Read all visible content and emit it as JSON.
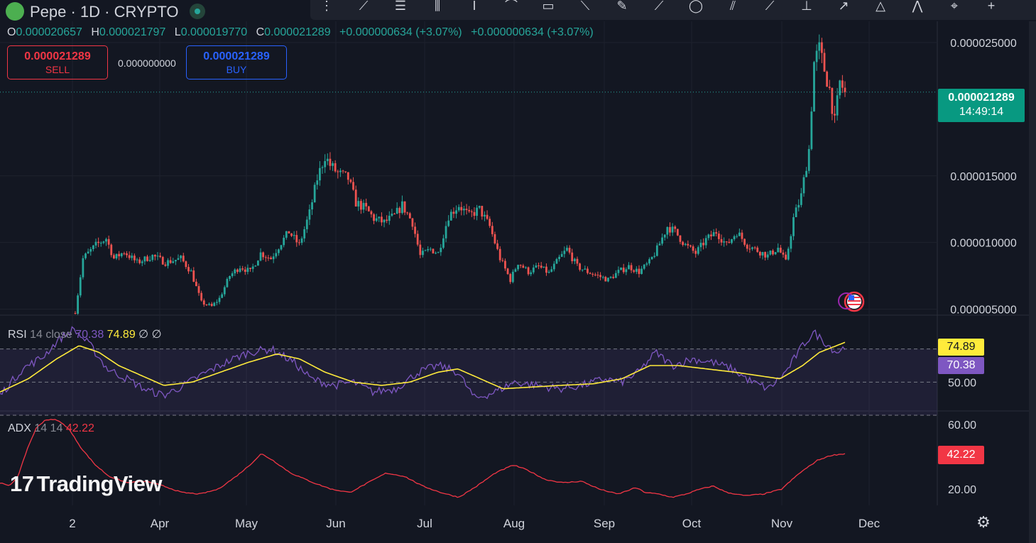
{
  "symbol": {
    "name": "Pepe · 1D · CRYPTO"
  },
  "ohlc": {
    "o_label": "O",
    "o": "0.000020657",
    "h_label": "H",
    "h": "0.000021797",
    "l_label": "L",
    "l": "0.000019770",
    "c_label": "C",
    "c": "0.000021289",
    "change": "+0.000000634 (+3.07%)",
    "change2": "+0.000000634 (+3.07%)"
  },
  "trade": {
    "sell_price": "0.000021289",
    "sell_label": "SELL",
    "spread": "0.000000000",
    "buy_price": "0.000021289",
    "buy_label": "BUY"
  },
  "price_tag": {
    "price": "0.000021289",
    "countdown": "14:49:14"
  },
  "rsi": {
    "name": "RSI",
    "params": "14 close",
    "value": "70.38",
    "ma_value": "74.89",
    "extra1": "∅",
    "extra2": "∅"
  },
  "adx": {
    "name": "ADX",
    "params": "14 14",
    "value": "42.22"
  },
  "watermark": "TradingView",
  "colors": {
    "up": "#26a69a",
    "down": "#ef5350",
    "rsi": "#7e57c2",
    "rsi_ma": "#ffeb3b",
    "adx": "#f23645",
    "bg": "#131722"
  },
  "icons": {
    "toolbar": [
      "drag-handle-icon",
      "trend-line-icon",
      "horizontal-lines-icon",
      "candles-icon",
      "text-cursor-icon",
      "node-line-icon",
      "rectangle-icon",
      "ray-icon",
      "pen-icon",
      "path-icon",
      "circle-icon",
      "parallel-icon",
      "line-node-icon",
      "anchor-icon",
      "arrow-icon",
      "triangle-icon",
      "pattern-icon",
      "crosshair-icon",
      "plus-icon"
    ]
  },
  "chart_data": {
    "type": "candlestick",
    "x_tick_labels": [
      "2",
      "Apr",
      "May",
      "Jun",
      "Jul",
      "Aug",
      "Sep",
      "Oct",
      "Nov",
      "Dec"
    ],
    "y_tick_labels": [
      "0.000025000",
      "0.000015000",
      "0.000010000",
      "0.000005000"
    ],
    "y_ticks": [
      2.5e-05,
      1.5e-05,
      1e-05,
      5e-06
    ],
    "ylim": [
      4.6e-06,
      2.66e-05
    ],
    "last_price": 2.1289e-05,
    "anchors": [
      [
        0,
        4.8e-06
      ],
      [
        3,
        8.8e-06
      ],
      [
        8,
        9.8e-06
      ],
      [
        12,
        1.03e-05
      ],
      [
        15,
        8.8e-06
      ],
      [
        19,
        9.3e-06
      ],
      [
        24,
        8.5e-06
      ],
      [
        30,
        9e-06
      ],
      [
        35,
        8.5e-06
      ],
      [
        41,
        8.8e-06
      ],
      [
        45,
        7.8e-06
      ],
      [
        49,
        5.5e-06
      ],
      [
        53,
        5.2e-06
      ],
      [
        56,
        5.8e-06
      ],
      [
        60,
        7.5e-06
      ],
      [
        64,
        8.2e-06
      ],
      [
        68,
        7.8e-06
      ],
      [
        72,
        9.2e-06
      ],
      [
        76,
        8.8e-06
      ],
      [
        80,
        1e-05
      ],
      [
        83,
        1.08e-05
      ],
      [
        87,
        9.8e-06
      ],
      [
        91,
        1.22e-05
      ],
      [
        94,
        1.48e-05
      ],
      [
        97,
        1.65e-05
      ],
      [
        99,
        1.58e-05
      ],
      [
        102,
        1.52e-05
      ],
      [
        106,
        1.48e-05
      ],
      [
        109,
        1.3e-05
      ],
      [
        113,
        1.25e-05
      ],
      [
        116,
        1.18e-05
      ],
      [
        120,
        1.15e-05
      ],
      [
        124,
        1.2e-05
      ],
      [
        127,
        1.28e-05
      ],
      [
        131,
        1.15e-05
      ],
      [
        134,
        9e-06
      ],
      [
        138,
        9.5e-06
      ],
      [
        141,
        9.2e-06
      ],
      [
        145,
        1.2e-05
      ],
      [
        149,
        1.28e-05
      ],
      [
        153,
        1.2e-05
      ],
      [
        157,
        1.25e-05
      ],
      [
        161,
        1.12e-05
      ],
      [
        165,
        8.8e-06
      ],
      [
        169,
        7.2e-06
      ],
      [
        172,
        8.5e-06
      ],
      [
        176,
        7.8e-06
      ],
      [
        180,
        8.2e-06
      ],
      [
        184,
        7.7e-06
      ],
      [
        188,
        8.8e-06
      ],
      [
        191,
        9.5e-06
      ],
      [
        195,
        8.2e-06
      ],
      [
        199,
        7.8e-06
      ],
      [
        203,
        7.5e-06
      ],
      [
        207,
        7.2e-06
      ],
      [
        211,
        7.8e-06
      ],
      [
        215,
        8.2e-06
      ],
      [
        219,
        7.8e-06
      ],
      [
        223,
        8.5e-06
      ],
      [
        226,
        9.5e-06
      ],
      [
        230,
        1.12e-05
      ],
      [
        233,
        1.08e-05
      ],
      [
        237,
        9.8e-06
      ],
      [
        241,
        9.2e-06
      ],
      [
        245,
        1.02e-05
      ],
      [
        249,
        1.08e-05
      ],
      [
        253,
        9.8e-06
      ],
      [
        257,
        1.08e-05
      ],
      [
        261,
        9.8e-06
      ],
      [
        265,
        9.4e-06
      ],
      [
        269,
        9e-06
      ],
      [
        273,
        9.6e-06
      ],
      [
        276,
        8.5e-06
      ],
      [
        279,
        1.18e-05
      ],
      [
        282,
        1.35e-05
      ],
      [
        285,
        1.7e-05
      ],
      [
        287,
        2.35e-05
      ],
      [
        289,
        2.45e-05
      ],
      [
        291,
        2.3e-05
      ],
      [
        293,
        2.15e-05
      ],
      [
        295,
        1.9e-05
      ],
      [
        297,
        2.2e-05
      ],
      [
        299,
        2.13e-05
      ]
    ],
    "rsi": {
      "ylim": [
        33,
        90
      ],
      "levels": [
        70,
        50,
        30
      ],
      "y_tick_labels": [
        "50.00"
      ],
      "last": 70.38,
      "ma_last": 74.89,
      "anchors": [
        [
          0,
          42
        ],
        [
          8,
          58
        ],
        [
          15,
          65
        ],
        [
          21,
          76
        ],
        [
          26,
          82
        ],
        [
          32,
          72
        ],
        [
          38,
          58
        ],
        [
          45,
          52
        ],
        [
          52,
          45
        ],
        [
          58,
          42
        ],
        [
          65,
          48
        ],
        [
          72,
          55
        ],
        [
          80,
          62
        ],
        [
          88,
          68
        ],
        [
          96,
          70
        ],
        [
          104,
          62
        ],
        [
          110,
          52
        ],
        [
          118,
          48
        ],
        [
          125,
          50
        ],
        [
          132,
          44
        ],
        [
          140,
          46
        ],
        [
          148,
          56
        ],
        [
          155,
          60
        ],
        [
          162,
          56
        ],
        [
          168,
          40
        ],
        [
          175,
          44
        ],
        [
          182,
          50
        ],
        [
          190,
          48
        ],
        [
          198,
          46
        ],
        [
          206,
          48
        ],
        [
          214,
          52
        ],
        [
          220,
          50
        ],
        [
          226,
          56
        ],
        [
          232,
          68
        ],
        [
          238,
          60
        ],
        [
          245,
          64
        ],
        [
          252,
          62
        ],
        [
          259,
          58
        ],
        [
          266,
          50
        ],
        [
          272,
          46
        ],
        [
          278,
          56
        ],
        [
          284,
          72
        ],
        [
          288,
          80
        ],
        [
          292,
          74
        ],
        [
          296,
          68
        ],
        [
          299,
          71
        ]
      ],
      "ma_anchors": [
        [
          0,
          44
        ],
        [
          10,
          52
        ],
        [
          20,
          64
        ],
        [
          28,
          72
        ],
        [
          35,
          68
        ],
        [
          42,
          60
        ],
        [
          50,
          54
        ],
        [
          58,
          48
        ],
        [
          68,
          50
        ],
        [
          78,
          56
        ],
        [
          88,
          62
        ],
        [
          98,
          67
        ],
        [
          106,
          64
        ],
        [
          115,
          56
        ],
        [
          125,
          50
        ],
        [
          135,
          48
        ],
        [
          145,
          50
        ],
        [
          155,
          56
        ],
        [
          162,
          58
        ],
        [
          170,
          52
        ],
        [
          178,
          46
        ],
        [
          188,
          47
        ],
        [
          198,
          48
        ],
        [
          210,
          49
        ],
        [
          220,
          52
        ],
        [
          230,
          60
        ],
        [
          240,
          60
        ],
        [
          250,
          58
        ],
        [
          260,
          56
        ],
        [
          268,
          54
        ],
        [
          276,
          52
        ],
        [
          284,
          60
        ],
        [
          290,
          68
        ],
        [
          296,
          72
        ],
        [
          299,
          74
        ]
      ]
    },
    "adx": {
      "ylim": [
        10,
        68
      ],
      "y_tick_labels": [
        "60.00",
        "20.00"
      ],
      "y_ticks": [
        60,
        20
      ],
      "last": 42.22,
      "anchors": [
        [
          0,
          24
        ],
        [
          4,
          22
        ],
        [
          8,
          28
        ],
        [
          12,
          45
        ],
        [
          16,
          58
        ],
        [
          20,
          63
        ],
        [
          25,
          63
        ],
        [
          30,
          58
        ],
        [
          36,
          45
        ],
        [
          42,
          35
        ],
        [
          48,
          28
        ],
        [
          56,
          24
        ],
        [
          64,
          25
        ],
        [
          72,
          22
        ],
        [
          80,
          18
        ],
        [
          88,
          17
        ],
        [
          96,
          20
        ],
        [
          104,
          28
        ],
        [
          110,
          35
        ],
        [
          115,
          42
        ],
        [
          120,
          38
        ],
        [
          128,
          30
        ],
        [
          138,
          24
        ],
        [
          146,
          20
        ],
        [
          154,
          18
        ],
        [
          162,
          24
        ],
        [
          170,
          30
        ],
        [
          178,
          28
        ],
        [
          186,
          22
        ],
        [
          194,
          18
        ],
        [
          202,
          15
        ],
        [
          210,
          22
        ],
        [
          218,
          30
        ],
        [
          226,
          35
        ],
        [
          232,
          32
        ],
        [
          240,
          26
        ],
        [
          248,
          24
        ],
        [
          256,
          25
        ],
        [
          264,
          20
        ],
        [
          272,
          17
        ],
        [
          280,
          21
        ],
        [
          284,
          18
        ],
        [
          290,
          17
        ],
        [
          296,
          15
        ],
        [
          302,
          17
        ],
        [
          308,
          20
        ],
        [
          314,
          22
        ],
        [
          320,
          18
        ],
        [
          328,
          16
        ],
        [
          336,
          17
        ],
        [
          344,
          20
        ],
        [
          352,
          30
        ],
        [
          360,
          38
        ],
        [
          366,
          41
        ],
        [
          372,
          42
        ]
      ]
    }
  }
}
